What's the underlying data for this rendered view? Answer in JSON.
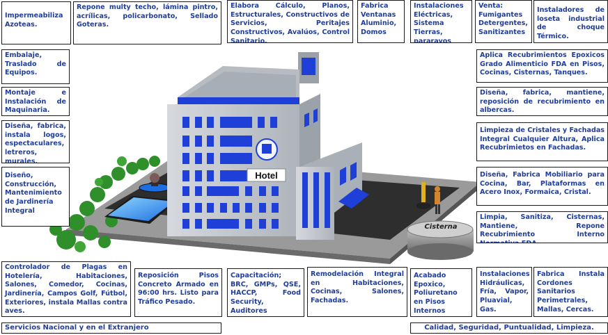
{
  "services": {
    "impermeabiliza": "Impermeabiliza Azoteas.",
    "repone": "Repone multy techo, lámina pintro, acrílicas, policarbonato, Sellado Goteras.",
    "elabora": "Elabora Cálculo, Planos, Estructurales, Constructivos de Servicios, Peritajes Constructivos, Avalúos, Control Sanitario.",
    "fabrica_ventanas": "Fabrica Ventanas Aluminio, Domos",
    "instalaciones_electricas": "Instalaciones Eléctricas, Sistema Tierras, pararayos",
    "venta": "Venta: Fumigantes Detergentes, Sanitizantes",
    "instaladores": "Instaladores de loseta industrial de choque Térmico.",
    "embalaje": "Embalaje, Traslado de Equipos.",
    "montaje": "Montaje e Instalación de Maquinaria.",
    "disena_logos": "Diseña, fabrica, instala logos, espectaculares, letreros, murales.",
    "diseno_jardineria": "Diseño, Construcción, Mantenimiento de Jardinería Integral",
    "aplica_epoxicos": "Aplica Recubrimientos Epoxicos Grado Alimenticio FDA en Pisos, Cocinas, Cisternas, Tanques.",
    "disena_albercas": "Diseña, fabrica, mantiene, reposición de recubrimiento en albercas.",
    "limpieza_cristales": "Limpieza de Cristales y Fachadas Integral Cualquier Altura, Aplica Recubrimietos en Fachadas.",
    "disena_mobiliario": "Diseña, Fabrica Mobiliario para Cocina, Bar, Plataformas en Acero Inox, Formaica, Cristal.",
    "limpia_cisternas": "Limpia, Sanitiza, Cisternas, Mantiene, Repone Recubrimiento Interno Normativa FDA.",
    "controlador_plagas": "Controlador de Plagas en Hotelería, Habitaciones, Salones, Comedor, Cocinas, Jardinería, Campos Golf, Fútbol, Exteriores, instala Mallas contra aves.",
    "reposicion_pisos": "Reposición Pisos Concreto Armado en 96:00 hrs. Listo para Tráfico Pesado.",
    "capacitacion": "Capacitación; BRC, GMPs, QSE, HACCP, Food Security, Auditores Internos-",
    "remodelacion": "Remodelación Integral en Habitaciones, Cocinas, Salones, Fachadas.",
    "acabado": "Acabado Epoxico, Poliuretano en Pisos Internos",
    "instalaciones_hidraulicas": "Instalaciones Hidráulicas, Fría, Vapor, Pluavial, Gas.",
    "fabrica_cordones": "Fabrica Instala Cordones Sanitarios Perimetrales, Mallas, Cercas."
  },
  "footer": {
    "left": "Servicios Nacional y en el Extranjero",
    "right": "Calidad, Seguridad, Puntualidad, Limpieza."
  },
  "illustration": {
    "hotel_sign": "Hotel",
    "cistern_label": "Cisterna"
  },
  "colors": {
    "text": "#1f3d99",
    "window_blue": "#1e3fd8",
    "building_gray": "#c9ced4",
    "ground_dark": "#2e2e2e"
  }
}
